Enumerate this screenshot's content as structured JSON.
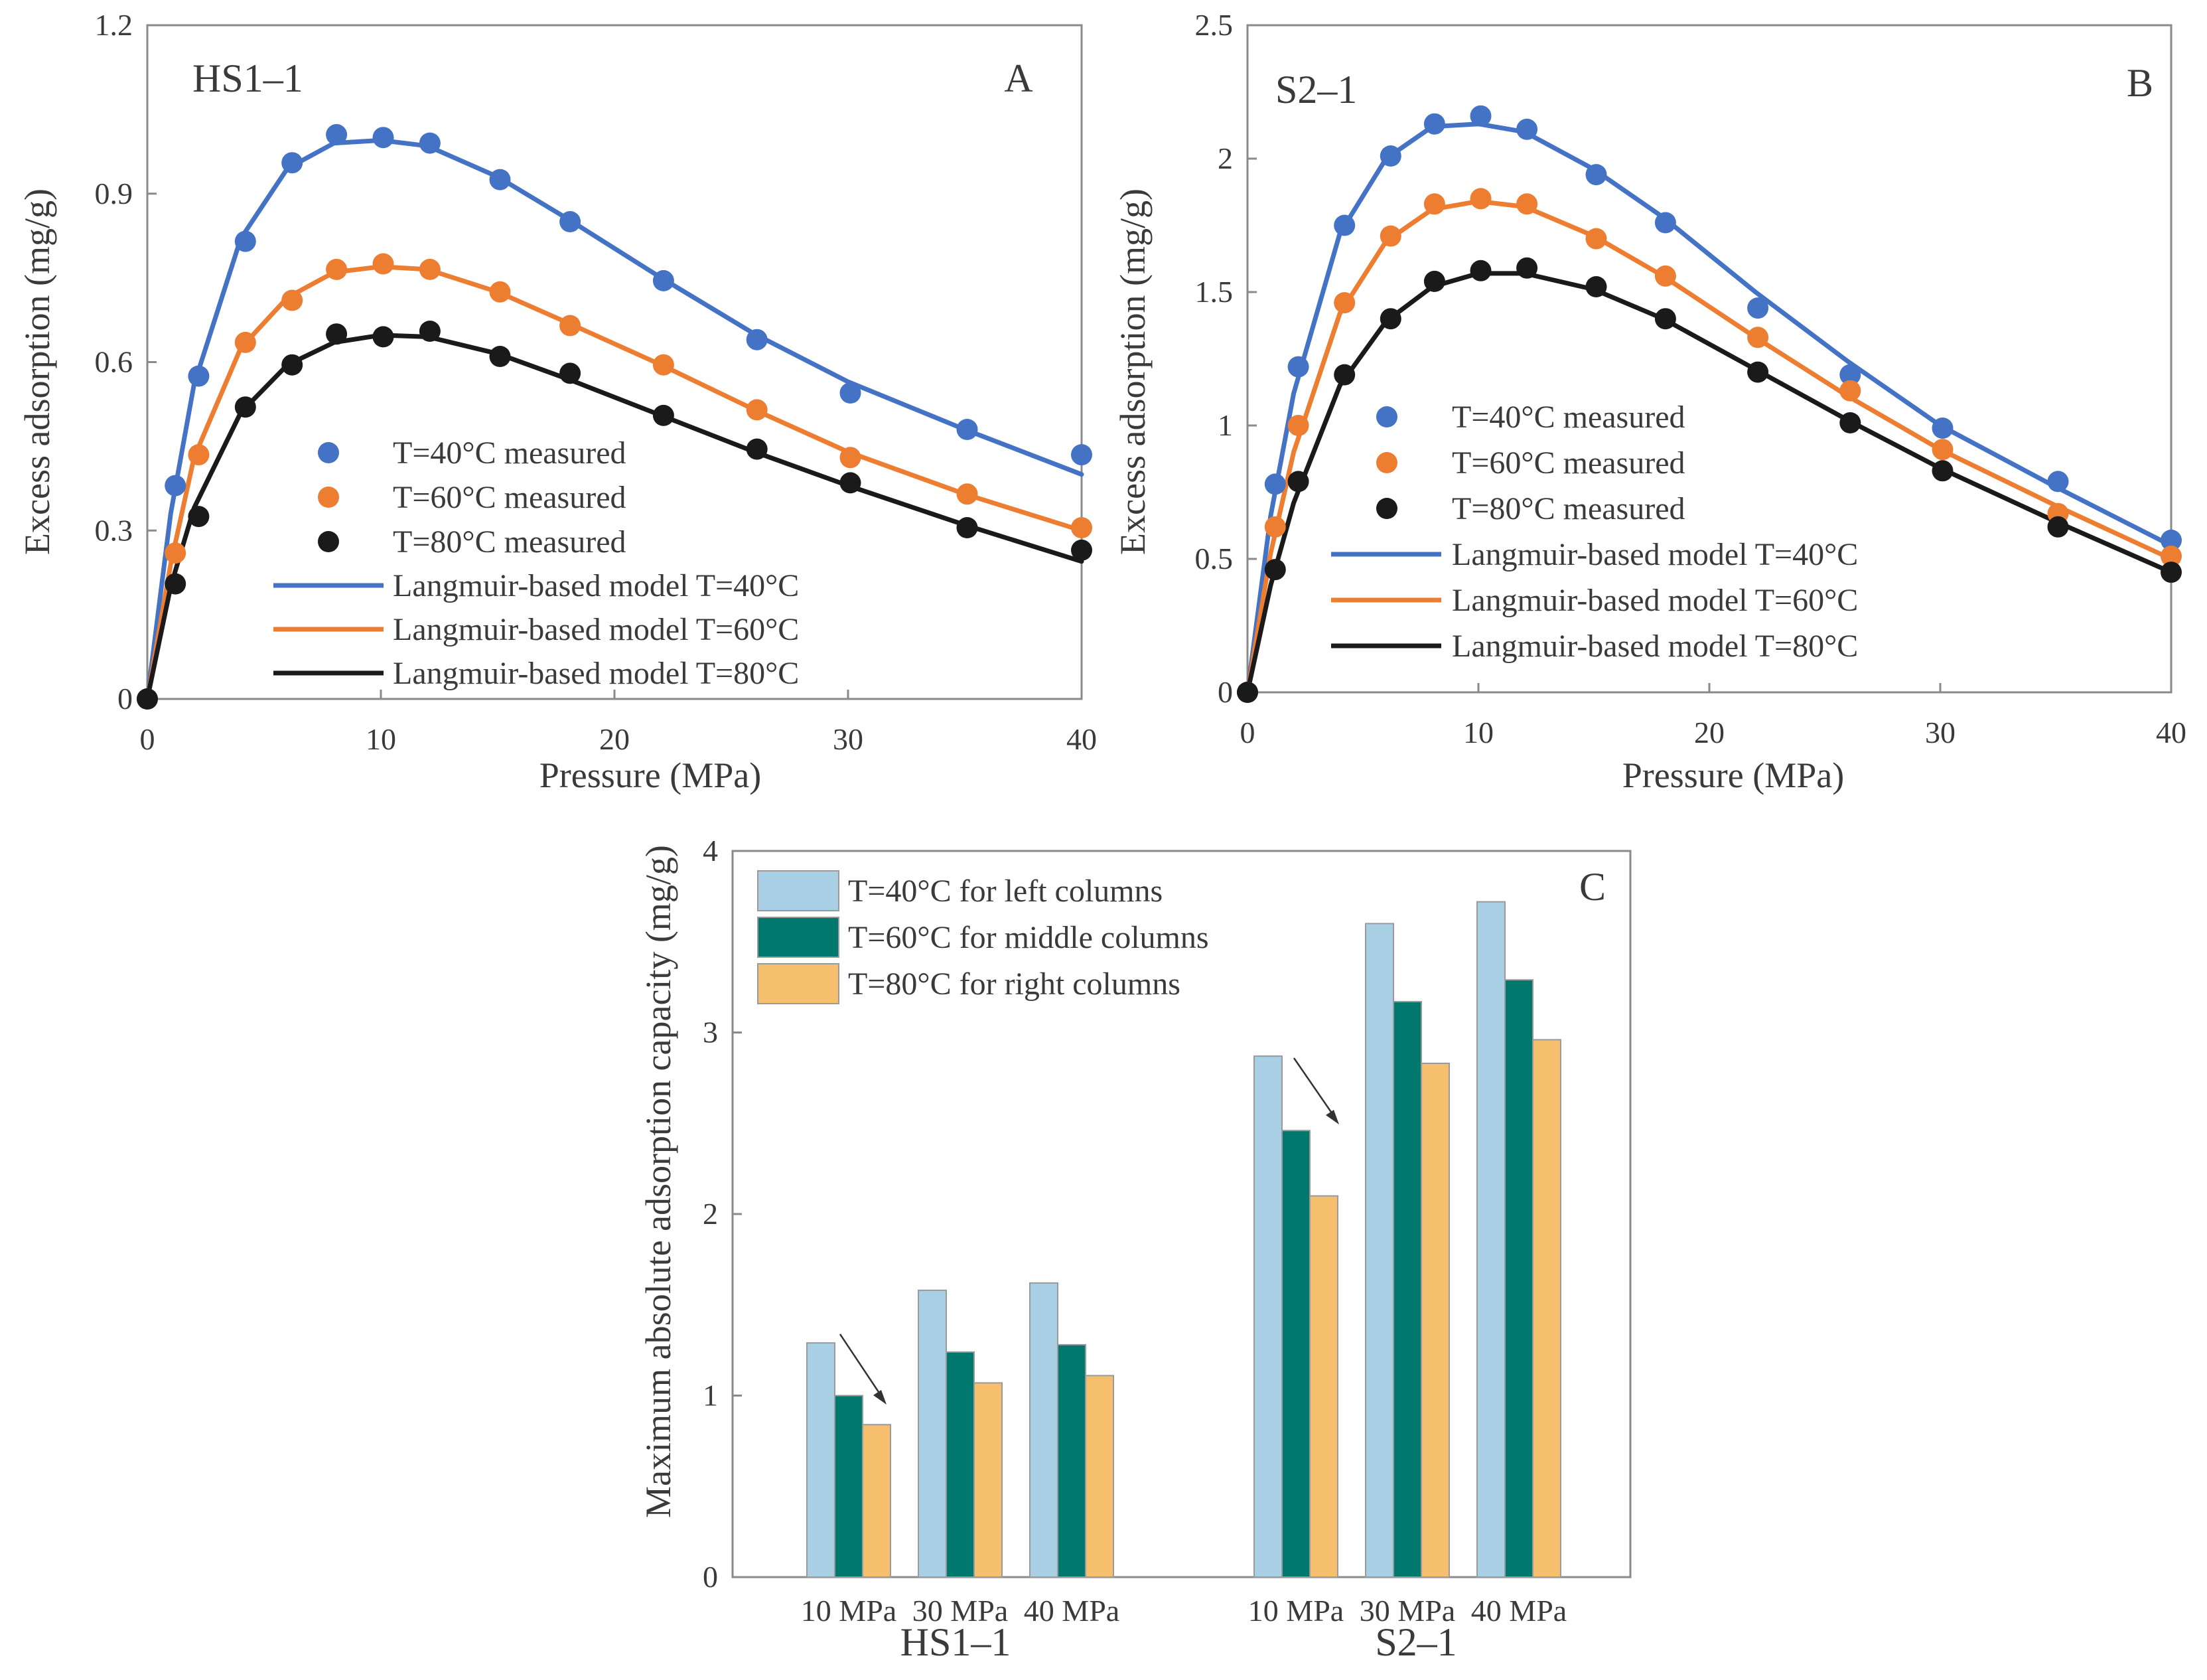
{
  "colors": {
    "T40_line": "#4472c4",
    "T60_line": "#ed7d31",
    "T80_line": "#1a1a1a",
    "bar_T40": "#a9cfe4",
    "bar_T60": "#00786e",
    "bar_T80": "#f5bf6e",
    "bar_edge": "#9a9a9a",
    "frame": "#8a8a8a",
    "text": "#3a3a3a"
  },
  "chart_data": [
    {
      "id": "A",
      "type": "line",
      "panel_label": "A",
      "sample": "HS1–1",
      "xlabel": "Pressure (MPa)",
      "ylabel": "Excess adsorption (mg/g)",
      "xlim": [
        0,
        40
      ],
      "ylim": [
        0,
        1.2
      ],
      "xticks": [
        0,
        10,
        20,
        30,
        40
      ],
      "yticks": [
        0,
        0.3,
        0.6,
        0.9,
        1.2
      ],
      "xtick_labels": [
        "0",
        "10",
        "20",
        "30",
        "40"
      ],
      "ytick_labels": [
        "0",
        "0.3",
        "0.6",
        "0.9",
        "1.2"
      ],
      "grid": false,
      "legend_position": "bottom-center",
      "measured": [
        {
          "name": "T=40°C measured",
          "color_key": "T40_line",
          "x": [
            0,
            1.2,
            2.2,
            4.2,
            6.2,
            8.1,
            10.1,
            12.1,
            15.1,
            18.1,
            22.1,
            26.1,
            30.1,
            35.1,
            40
          ],
          "y": [
            0,
            0.38,
            0.575,
            0.815,
            0.955,
            1.005,
            1.0,
            0.99,
            0.925,
            0.85,
            0.745,
            0.64,
            0.545,
            0.48,
            0.435
          ]
        },
        {
          "name": "T=60°C measured",
          "color_key": "T60_line",
          "x": [
            0,
            1.2,
            2.2,
            4.2,
            6.2,
            8.1,
            10.1,
            12.1,
            15.1,
            18.1,
            22.1,
            26.1,
            30.1,
            35.1,
            40
          ],
          "y": [
            0,
            0.26,
            0.435,
            0.635,
            0.71,
            0.765,
            0.775,
            0.765,
            0.725,
            0.665,
            0.595,
            0.515,
            0.43,
            0.365,
            0.305
          ]
        },
        {
          "name": "T=80°C measured",
          "color_key": "T80_line",
          "x": [
            0,
            1.2,
            2.2,
            4.2,
            6.2,
            8.1,
            10.1,
            12.1,
            15.1,
            18.1,
            22.1,
            26.1,
            30.1,
            35.1,
            40
          ],
          "y": [
            0,
            0.205,
            0.325,
            0.52,
            0.595,
            0.65,
            0.645,
            0.655,
            0.61,
            0.58,
            0.505,
            0.445,
            0.385,
            0.305,
            0.265
          ]
        }
      ],
      "model": [
        {
          "name": "Langmuir-based model T=40°C",
          "color_key": "T40_line",
          "x": [
            0,
            1,
            2,
            4,
            6,
            8,
            10,
            12,
            15,
            18,
            22,
            26,
            30,
            35,
            40
          ],
          "y": [
            0,
            0.33,
            0.56,
            0.82,
            0.945,
            0.99,
            0.995,
            0.985,
            0.93,
            0.855,
            0.75,
            0.65,
            0.565,
            0.48,
            0.4
          ]
        },
        {
          "name": "Langmuir-based model T=60°C",
          "color_key": "T60_line",
          "x": [
            0,
            1,
            2,
            4,
            6,
            8,
            10,
            12,
            15,
            18,
            22,
            26,
            30,
            35,
            40
          ],
          "y": [
            0,
            0.24,
            0.43,
            0.625,
            0.715,
            0.76,
            0.77,
            0.765,
            0.725,
            0.67,
            0.595,
            0.515,
            0.44,
            0.365,
            0.3
          ]
        },
        {
          "name": "Langmuir-based model T=80°C",
          "color_key": "T80_line",
          "x": [
            0,
            1,
            2,
            4,
            6,
            8,
            10,
            12,
            15,
            18,
            22,
            26,
            30,
            35,
            40
          ],
          "y": [
            0,
            0.2,
            0.34,
            0.51,
            0.595,
            0.635,
            0.648,
            0.645,
            0.615,
            0.57,
            0.505,
            0.44,
            0.38,
            0.31,
            0.245
          ]
        }
      ]
    },
    {
      "id": "B",
      "type": "line",
      "panel_label": "B",
      "sample": "S2–1",
      "xlabel": "Pressure (MPa)",
      "ylabel": "Excess adsorption (mg/g)",
      "xlim": [
        0,
        40
      ],
      "ylim": [
        0,
        2.5
      ],
      "xticks": [
        0,
        10,
        20,
        30,
        40
      ],
      "yticks": [
        0,
        0.5,
        1,
        1.5,
        2,
        2.5
      ],
      "xtick_labels": [
        "0",
        "10",
        "20",
        "30",
        "40"
      ],
      "ytick_labels": [
        "0",
        "0.5",
        "1",
        "1.5",
        "2",
        "2.5"
      ],
      "grid": false,
      "legend_position": "center",
      "measured": [
        {
          "name": "T=40°C measured",
          "color_key": "T40_line",
          "x": [
            0,
            1.2,
            2.2,
            4.2,
            6.2,
            8.1,
            10.1,
            12.1,
            15.1,
            18.1,
            22.1,
            26.1,
            30.1,
            35.1,
            40
          ],
          "y": [
            0,
            0.78,
            1.22,
            1.75,
            2.01,
            2.13,
            2.16,
            2.11,
            1.94,
            1.76,
            1.44,
            1.19,
            0.99,
            0.79,
            0.57
          ]
        },
        {
          "name": "T=60°C measured",
          "color_key": "T60_line",
          "x": [
            0,
            1.2,
            2.2,
            4.2,
            6.2,
            8.1,
            10.1,
            12.1,
            15.1,
            18.1,
            22.1,
            26.1,
            30.1,
            35.1,
            40
          ],
          "y": [
            0,
            0.62,
            1.0,
            1.46,
            1.71,
            1.83,
            1.85,
            1.83,
            1.7,
            1.56,
            1.33,
            1.13,
            0.91,
            0.67,
            0.51
          ]
        },
        {
          "name": "T=80°C measured",
          "color_key": "T80_line",
          "x": [
            0,
            1.2,
            2.2,
            4.2,
            6.2,
            8.1,
            10.1,
            12.1,
            15.1,
            18.1,
            22.1,
            26.1,
            30.1,
            35.1,
            40
          ],
          "y": [
            0,
            0.46,
            0.79,
            1.19,
            1.4,
            1.54,
            1.58,
            1.59,
            1.52,
            1.4,
            1.2,
            1.01,
            0.83,
            0.62,
            0.45
          ]
        }
      ],
      "model": [
        {
          "name": "Langmuir-based model T=40°C",
          "color_key": "T40_line",
          "x": [
            0,
            1,
            2,
            4,
            6,
            8,
            10,
            12,
            15,
            18,
            22,
            26,
            30,
            35,
            40
          ],
          "y": [
            0,
            0.66,
            1.12,
            1.72,
            2.0,
            2.12,
            2.13,
            2.1,
            1.96,
            1.78,
            1.5,
            1.24,
            1.0,
            0.77,
            0.55
          ]
        },
        {
          "name": "Langmuir-based model T=60°C",
          "color_key": "T60_line",
          "x": [
            0,
            1,
            2,
            4,
            6,
            8,
            10,
            12,
            15,
            18,
            22,
            26,
            30,
            35,
            40
          ],
          "y": [
            0,
            0.52,
            0.9,
            1.42,
            1.69,
            1.81,
            1.84,
            1.82,
            1.71,
            1.56,
            1.33,
            1.11,
            0.91,
            0.7,
            0.5
          ]
        },
        {
          "name": "Langmuir-based model T=80°C",
          "color_key": "T80_line",
          "x": [
            0,
            1,
            2,
            4,
            6,
            8,
            10,
            12,
            15,
            18,
            22,
            26,
            30,
            35,
            40
          ],
          "y": [
            0,
            0.4,
            0.71,
            1.15,
            1.39,
            1.52,
            1.57,
            1.57,
            1.51,
            1.4,
            1.21,
            1.02,
            0.84,
            0.64,
            0.45
          ]
        }
      ]
    },
    {
      "id": "C",
      "type": "bar",
      "panel_label": "C",
      "ylabel": "Maximum absolute adsorption capacity (mg/g)",
      "ylim": [
        0,
        4
      ],
      "yticks": [
        0,
        1,
        2,
        3,
        4
      ],
      "ytick_labels": [
        "0",
        "1",
        "2",
        "3",
        "4"
      ],
      "grid": false,
      "legend_position": "top-left",
      "groups": [
        "HS1–1",
        "S2–1"
      ],
      "categories": [
        "10 MPa",
        "30 MPa",
        "40 MPa",
        "10 MPa",
        "30 MPa",
        "40 MPa"
      ],
      "series": [
        {
          "name": "T=40°C for left columns",
          "color_key": "bar_T40",
          "values": [
            1.29,
            1.58,
            1.62,
            2.87,
            3.6,
            3.72
          ]
        },
        {
          "name": "T=60°C for middle columns",
          "color_key": "bar_T60",
          "values": [
            1.0,
            1.24,
            1.28,
            2.46,
            3.17,
            3.29
          ]
        },
        {
          "name": "T=80°C for right columns",
          "color_key": "bar_T80",
          "values": [
            0.84,
            1.07,
            1.11,
            2.1,
            2.83,
            2.96
          ]
        }
      ]
    }
  ]
}
